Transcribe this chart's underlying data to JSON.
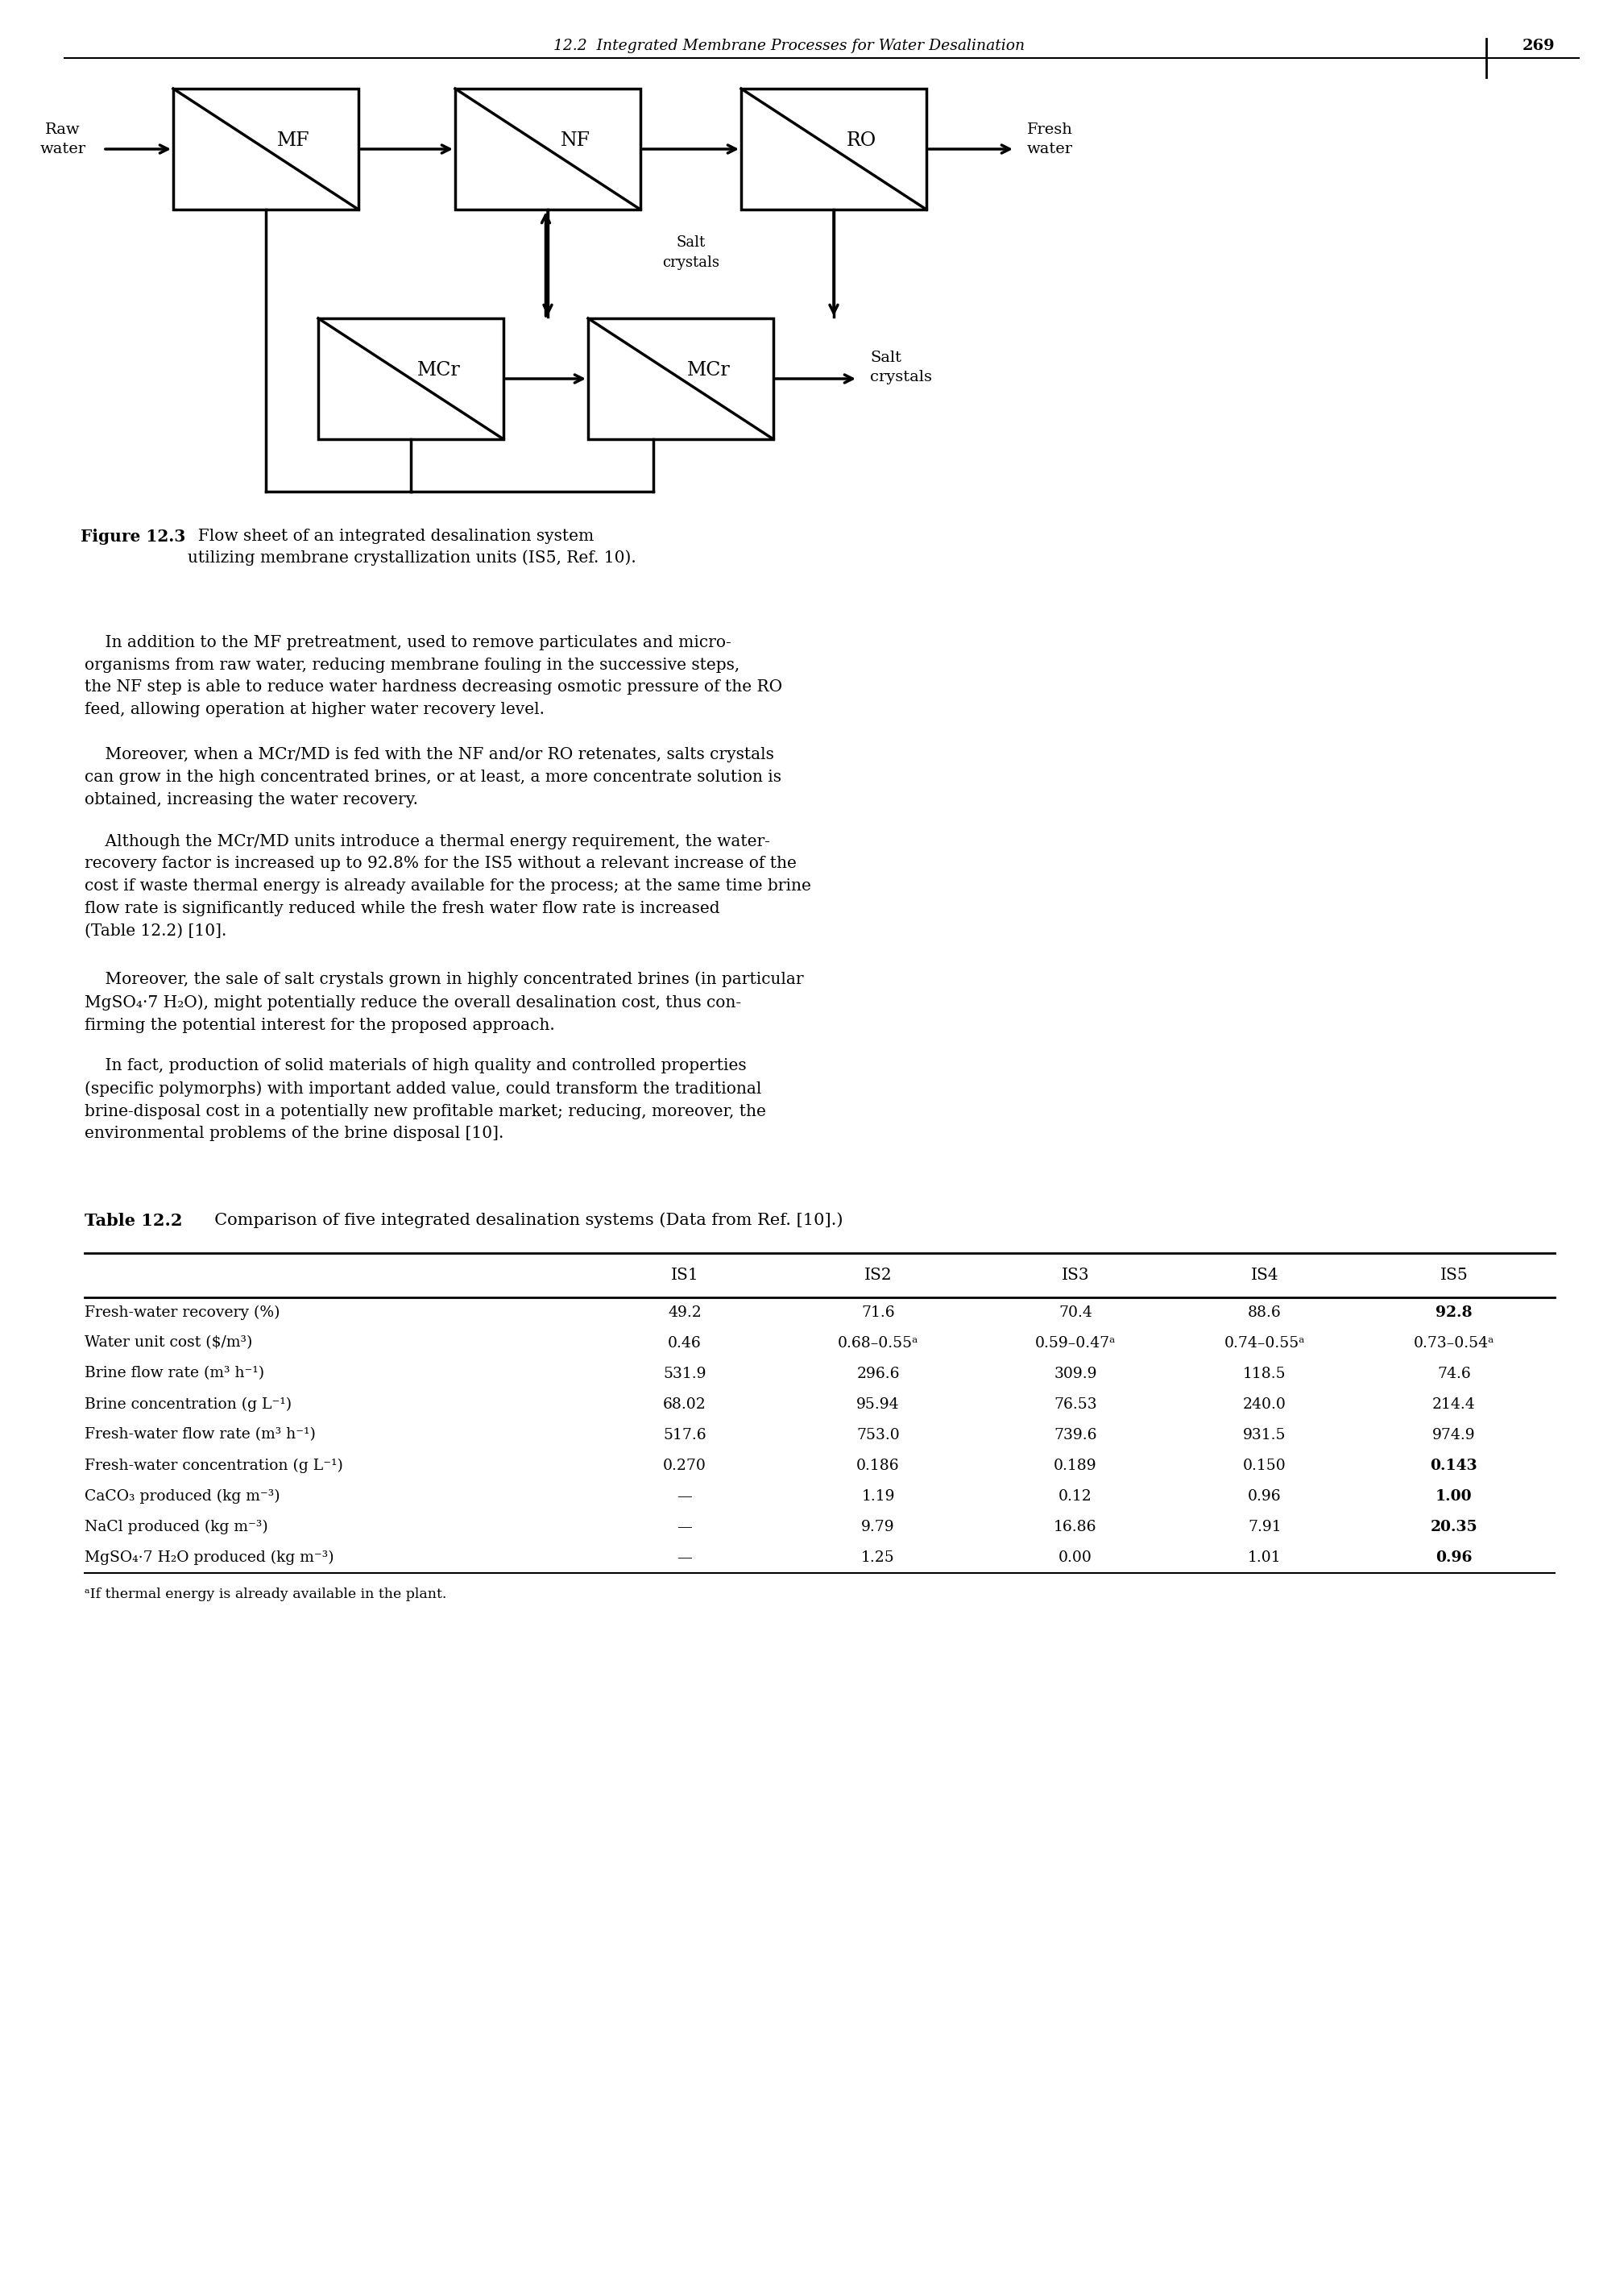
{
  "page_header": "12.2  Integrated Membrane Processes for Water Desalination",
  "page_number": "269",
  "figure_caption_bold": "Figure 12.3",
  "figure_caption_rest": "  Flow sheet of an integrated desalination system\nutilizing membrane crystallization units (IS5, Ref. 10).",
  "body_paragraphs": [
    "    In addition to the MF pretreatment, used to remove particulates and micro-\norganisms from raw water, reducing membrane fouling in the successive steps,\nthe NF step is able to reduce water hardness decreasing osmotic pressure of the RO\nfeed, allowing operation at higher water recovery level.",
    "    Moreover, when a MCr/MD is fed with the NF and/or RO retenates, salts crystals\ncan grow in the high concentrated brines, or at least, a more concentrate solution is\nobtained, increasing the water recovery.",
    "    Although the MCr/MD units introduce a thermal energy requirement, the water-\nrecovery factor is increased up to 92.8% for the IS5 without a relevant increase of the\ncost if waste thermal energy is already available for the process; at the same time brine\nflow rate is significantly reduced while the fresh water flow rate is increased\n(Table 12.2) [10].",
    "    Moreover, the sale of salt crystals grown in highly concentrated brines (in particular\nMgSO₄·7 H₂O), might potentially reduce the overall desalination cost, thus con-\nfirming the potential interest for the proposed approach.",
    "    In fact, production of solid materials of high quality and controlled properties\n(specific polymorphs) with important added value, could transform the traditional\nbrine-disposal cost in a potentially new profitable market; reducing, moreover, the\nenvironmental problems of the brine disposal [10]."
  ],
  "table_title_bold": "Table 12.2",
  "table_title_rest": "  Comparison of five integrated desalination systems (Data from Ref. [10].)",
  "table_headers": [
    "",
    "IS1",
    "IS2",
    "IS3",
    "IS4",
    "IS5"
  ],
  "table_rows": [
    [
      "Fresh-water recovery (%)",
      "49.2",
      "71.6",
      "70.4",
      "88.6",
      "92.8"
    ],
    [
      "Water unit cost ($/m³)",
      "0.46",
      "0.68–0.55ᵃ",
      "0.59–0.47ᵃ",
      "0.74–0.55ᵃ",
      "0.73–0.54ᵃ"
    ],
    [
      "Brine flow rate (m³ h⁻¹)",
      "531.9",
      "296.6",
      "309.9",
      "118.5",
      "74.6"
    ],
    [
      "Brine concentration (g L⁻¹)",
      "68.02",
      "95.94",
      "76.53",
      "240.0",
      "214.4"
    ],
    [
      "Fresh-water flow rate (m³ h⁻¹)",
      "517.6",
      "753.0",
      "739.6",
      "931.5",
      "974.9"
    ],
    [
      "Fresh-water concentration (g L⁻¹)",
      "0.270",
      "0.186",
      "0.189",
      "0.150",
      "0.143"
    ],
    [
      "CaCO₃ produced (kg m⁻³)",
      "—",
      "1.19",
      "0.12",
      "0.96",
      "1.00"
    ],
    [
      "NaCl produced (kg m⁻³)",
      "—",
      "9.79",
      "16.86",
      "7.91",
      "20.35"
    ],
    [
      "MgSO₄·7 H₂O produced (kg m⁻³)",
      "—",
      "1.25",
      "0.00",
      "1.01",
      "0.96"
    ]
  ],
  "table_footnote": "ᵃIf thermal energy is already available in the plant.",
  "bold_is5_rows": [
    0,
    5,
    6,
    7,
    8
  ],
  "background_color": "#ffffff"
}
